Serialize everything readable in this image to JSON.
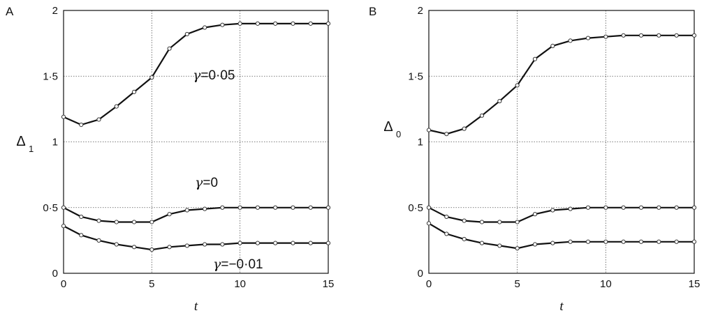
{
  "chart_data": [
    {
      "type": "line",
      "panel_label": "A",
      "xlabel": "t",
      "ylabel": "Δ",
      "ylabel_sub": "1",
      "xlim": [
        0,
        15
      ],
      "ylim": [
        0,
        2
      ],
      "xticks": [
        0,
        5,
        10,
        15
      ],
      "yticks": [
        0,
        0.5,
        1,
        1.5,
        2
      ],
      "xtick_labels": [
        "0",
        "5",
        "10",
        "15"
      ],
      "ytick_labels": [
        "0",
        "0·5",
        "1",
        "1·5",
        "2"
      ],
      "grid": true,
      "x": [
        0,
        1,
        2,
        3,
        4,
        5,
        6,
        7,
        8,
        9,
        10,
        11,
        12,
        13,
        14,
        15
      ],
      "series": [
        {
          "label_symbol": "γ",
          "label_value": "=0·05",
          "values": [
            1.19,
            1.13,
            1.17,
            1.27,
            1.38,
            1.49,
            1.71,
            1.82,
            1.87,
            1.89,
            1.9,
            1.9,
            1.9,
            1.9,
            1.9,
            1.9
          ]
        },
        {
          "label_symbol": "γ",
          "label_value": "=0",
          "values": [
            0.5,
            0.43,
            0.4,
            0.39,
            0.39,
            0.39,
            0.45,
            0.48,
            0.49,
            0.5,
            0.5,
            0.5,
            0.5,
            0.5,
            0.5,
            0.5
          ]
        },
        {
          "label_symbol": "γ",
          "label_value": "=−0·01",
          "values": [
            0.36,
            0.29,
            0.25,
            0.22,
            0.2,
            0.18,
            0.2,
            0.21,
            0.22,
            0.22,
            0.23,
            0.23,
            0.23,
            0.23,
            0.23,
            0.23
          ]
        }
      ]
    },
    {
      "type": "line",
      "panel_label": "B",
      "xlabel": "t",
      "ylabel": "Δ",
      "ylabel_sub": "0",
      "xlim": [
        0,
        15
      ],
      "ylim": [
        0,
        2
      ],
      "xticks": [
        0,
        5,
        10,
        15
      ],
      "yticks": [
        0,
        0.5,
        1,
        1.5,
        2
      ],
      "xtick_labels": [
        "0",
        "5",
        "10",
        "15"
      ],
      "ytick_labels": [
        "0",
        "0·5",
        "1",
        "1·5",
        "2"
      ],
      "grid": true,
      "x": [
        0,
        1,
        2,
        3,
        4,
        5,
        6,
        7,
        8,
        9,
        10,
        11,
        12,
        13,
        14,
        15
      ],
      "series": [
        {
          "values": [
            1.09,
            1.06,
            1.1,
            1.2,
            1.31,
            1.43,
            1.63,
            1.73,
            1.77,
            1.79,
            1.8,
            1.81,
            1.81,
            1.81,
            1.81,
            1.81
          ]
        },
        {
          "values": [
            0.5,
            0.43,
            0.4,
            0.39,
            0.39,
            0.39,
            0.45,
            0.48,
            0.49,
            0.5,
            0.5,
            0.5,
            0.5,
            0.5,
            0.5,
            0.5
          ]
        },
        {
          "values": [
            0.38,
            0.3,
            0.26,
            0.23,
            0.21,
            0.19,
            0.22,
            0.23,
            0.24,
            0.24,
            0.24,
            0.24,
            0.24,
            0.24,
            0.24,
            0.24
          ]
        }
      ]
    }
  ]
}
